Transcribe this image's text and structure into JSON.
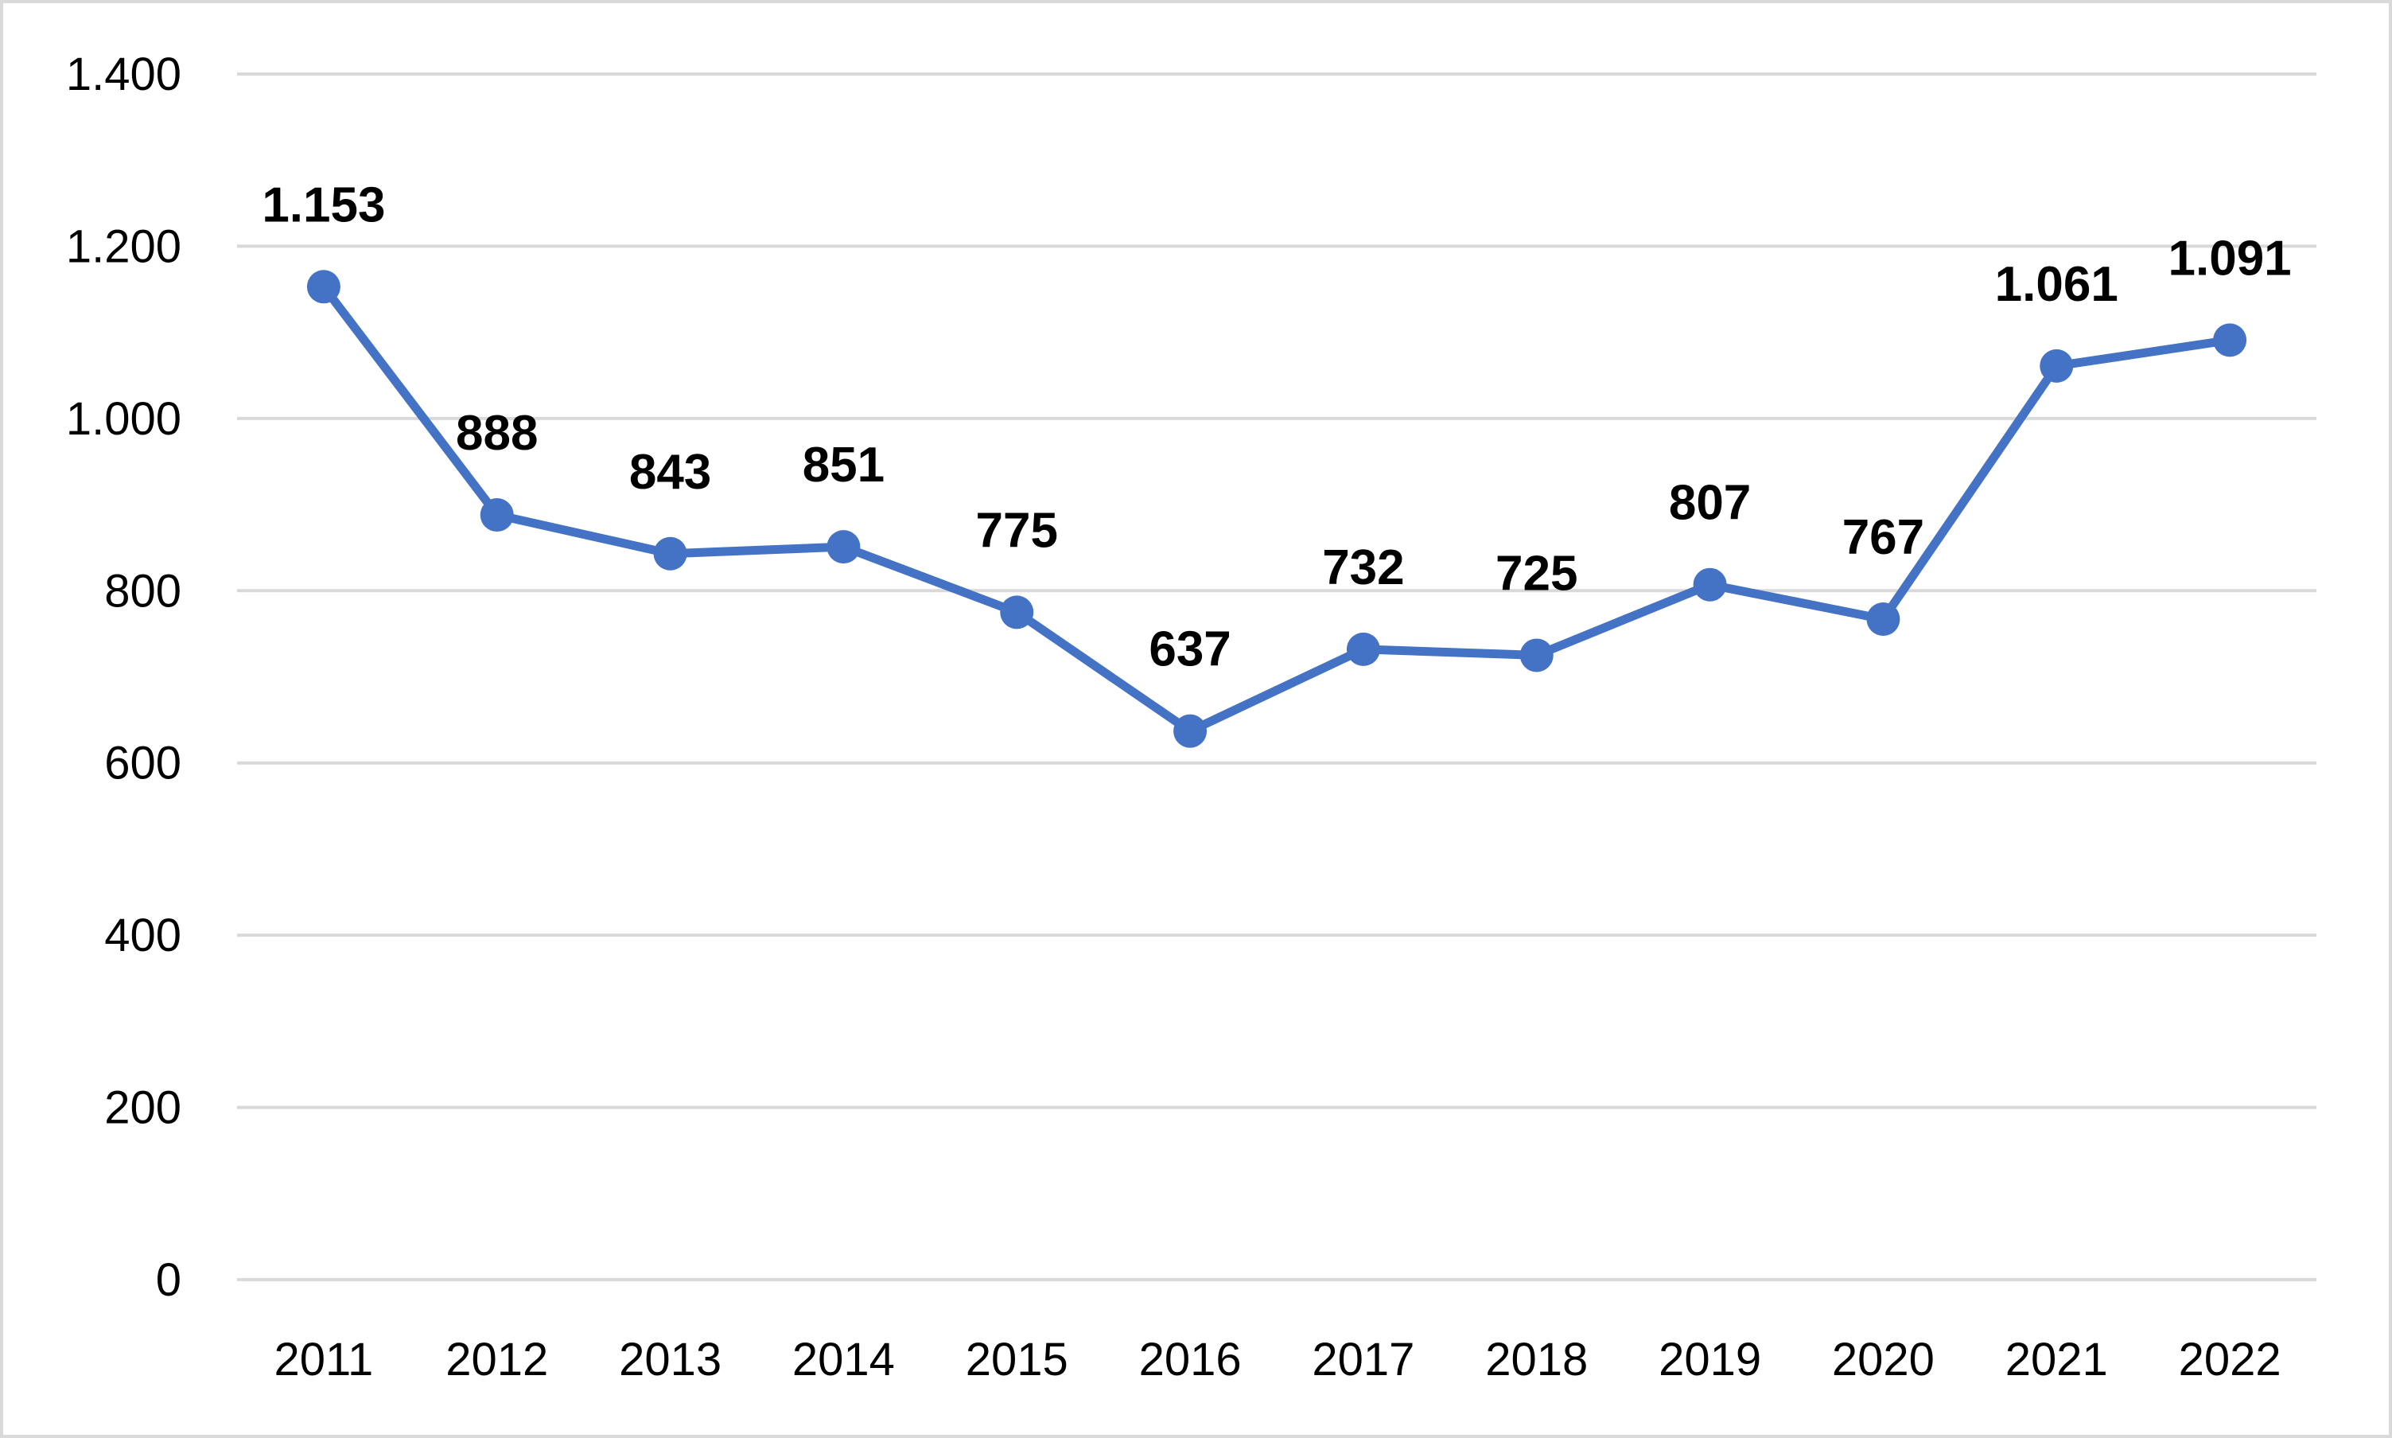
{
  "chart_data": {
    "type": "line",
    "title": "",
    "xlabel": "",
    "ylabel": "",
    "categories": [
      "2011",
      "2012",
      "2013",
      "2014",
      "2015",
      "2016",
      "2017",
      "2018",
      "2019",
      "2020",
      "2021",
      "2022"
    ],
    "series": [
      {
        "values": [
          1153,
          888,
          843,
          851,
          775,
          637,
          732,
          725,
          807,
          767,
          1061,
          1091
        ],
        "data_labels": [
          "1.153",
          "888",
          "843",
          "851",
          "775",
          "637",
          "732",
          "725",
          "807",
          "767",
          "1.061",
          "1.091"
        ],
        "color": "#4472c4",
        "markers": true
      }
    ],
    "ylim": [
      0,
      1400
    ],
    "yticks": [
      0,
      200,
      400,
      600,
      800,
      1000,
      1200,
      1400
    ],
    "ytick_labels": [
      "0",
      "200",
      "400",
      "600",
      "800",
      "1.000",
      "1.200",
      "1.400"
    ],
    "grid": true,
    "legend": "none"
  },
  "colors": {
    "series": "#4472c4",
    "gridline": "#d9d9d9",
    "frame": "#d9d9d9",
    "text": "#000000"
  }
}
